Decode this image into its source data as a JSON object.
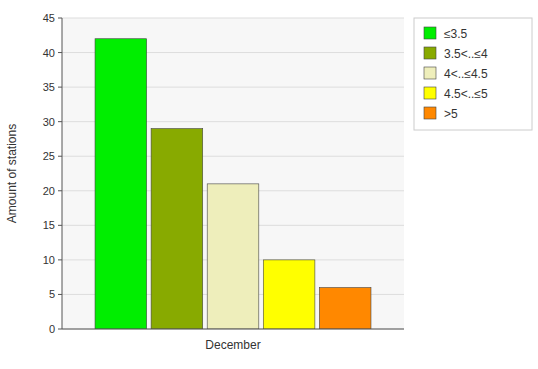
{
  "chart_data": {
    "type": "bar",
    "categories": [
      "December"
    ],
    "series": [
      {
        "name": "≤3.5",
        "color": "#00EE00",
        "values": [
          42
        ]
      },
      {
        "name": "3.5<..≤4",
        "color": "#88AA00",
        "values": [
          29
        ]
      },
      {
        "name": "4<..≤4.5",
        "color": "#EEEEBB",
        "values": [
          21
        ]
      },
      {
        "name": "4.5<..≤5",
        "color": "#FFFF00",
        "values": [
          10
        ]
      },
      {
        "name": ">5",
        "color": "#FF8800",
        "values": [
          6
        ]
      }
    ],
    "ylabel": "Amount of stations",
    "ylim": [
      0,
      45
    ],
    "yticks": [
      0,
      5,
      10,
      15,
      20,
      25,
      30,
      35,
      40,
      45
    ],
    "grid": true,
    "legend": "upper right"
  }
}
